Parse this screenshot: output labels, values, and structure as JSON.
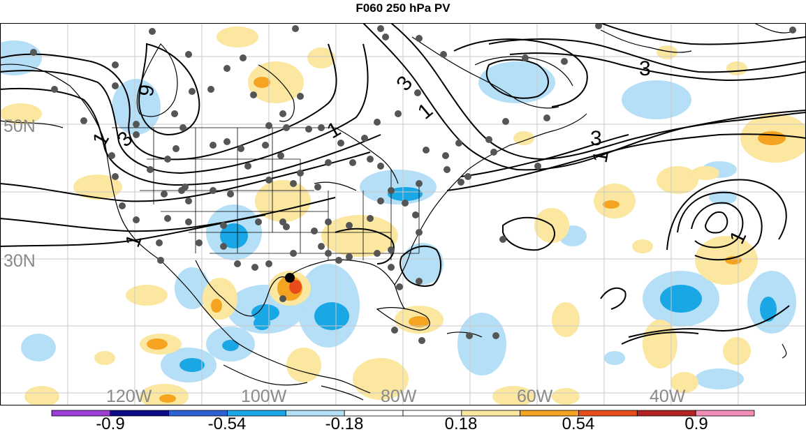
{
  "title": "F060 250 hPa PV",
  "map": {
    "lat_labels": [
      "50N",
      "30N"
    ],
    "lon_labels": [
      "120W",
      "100W",
      "80W",
      "60W",
      "40W"
    ],
    "contour_labels": [
      "9",
      "3",
      "1",
      "3",
      "1",
      "1",
      "3",
      "1",
      "3",
      "1",
      "1"
    ],
    "colors": {
      "positive_light": "#fbe79f",
      "positive_orange": "#f5a422",
      "positive_red": "#e84b1c",
      "negative_light": "#b4dff7",
      "negative_mid": "#1aa7e6",
      "station_dot": "#555555",
      "storm_dot": "#000000"
    }
  },
  "colorbar": {
    "tick_labels": [
      "-0.9",
      "-0.54",
      "-0.18",
      "0.18",
      "0.54",
      "0.9"
    ],
    "colors": [
      "#9b3fd6",
      "#0b0b8a",
      "#2d5fd6",
      "#1aa7e6",
      "#b4dff7",
      "#ffffff",
      "#ffffff",
      "#fbe79f",
      "#f5a422",
      "#e84b1c",
      "#b22222",
      "#f28cb4"
    ]
  }
}
